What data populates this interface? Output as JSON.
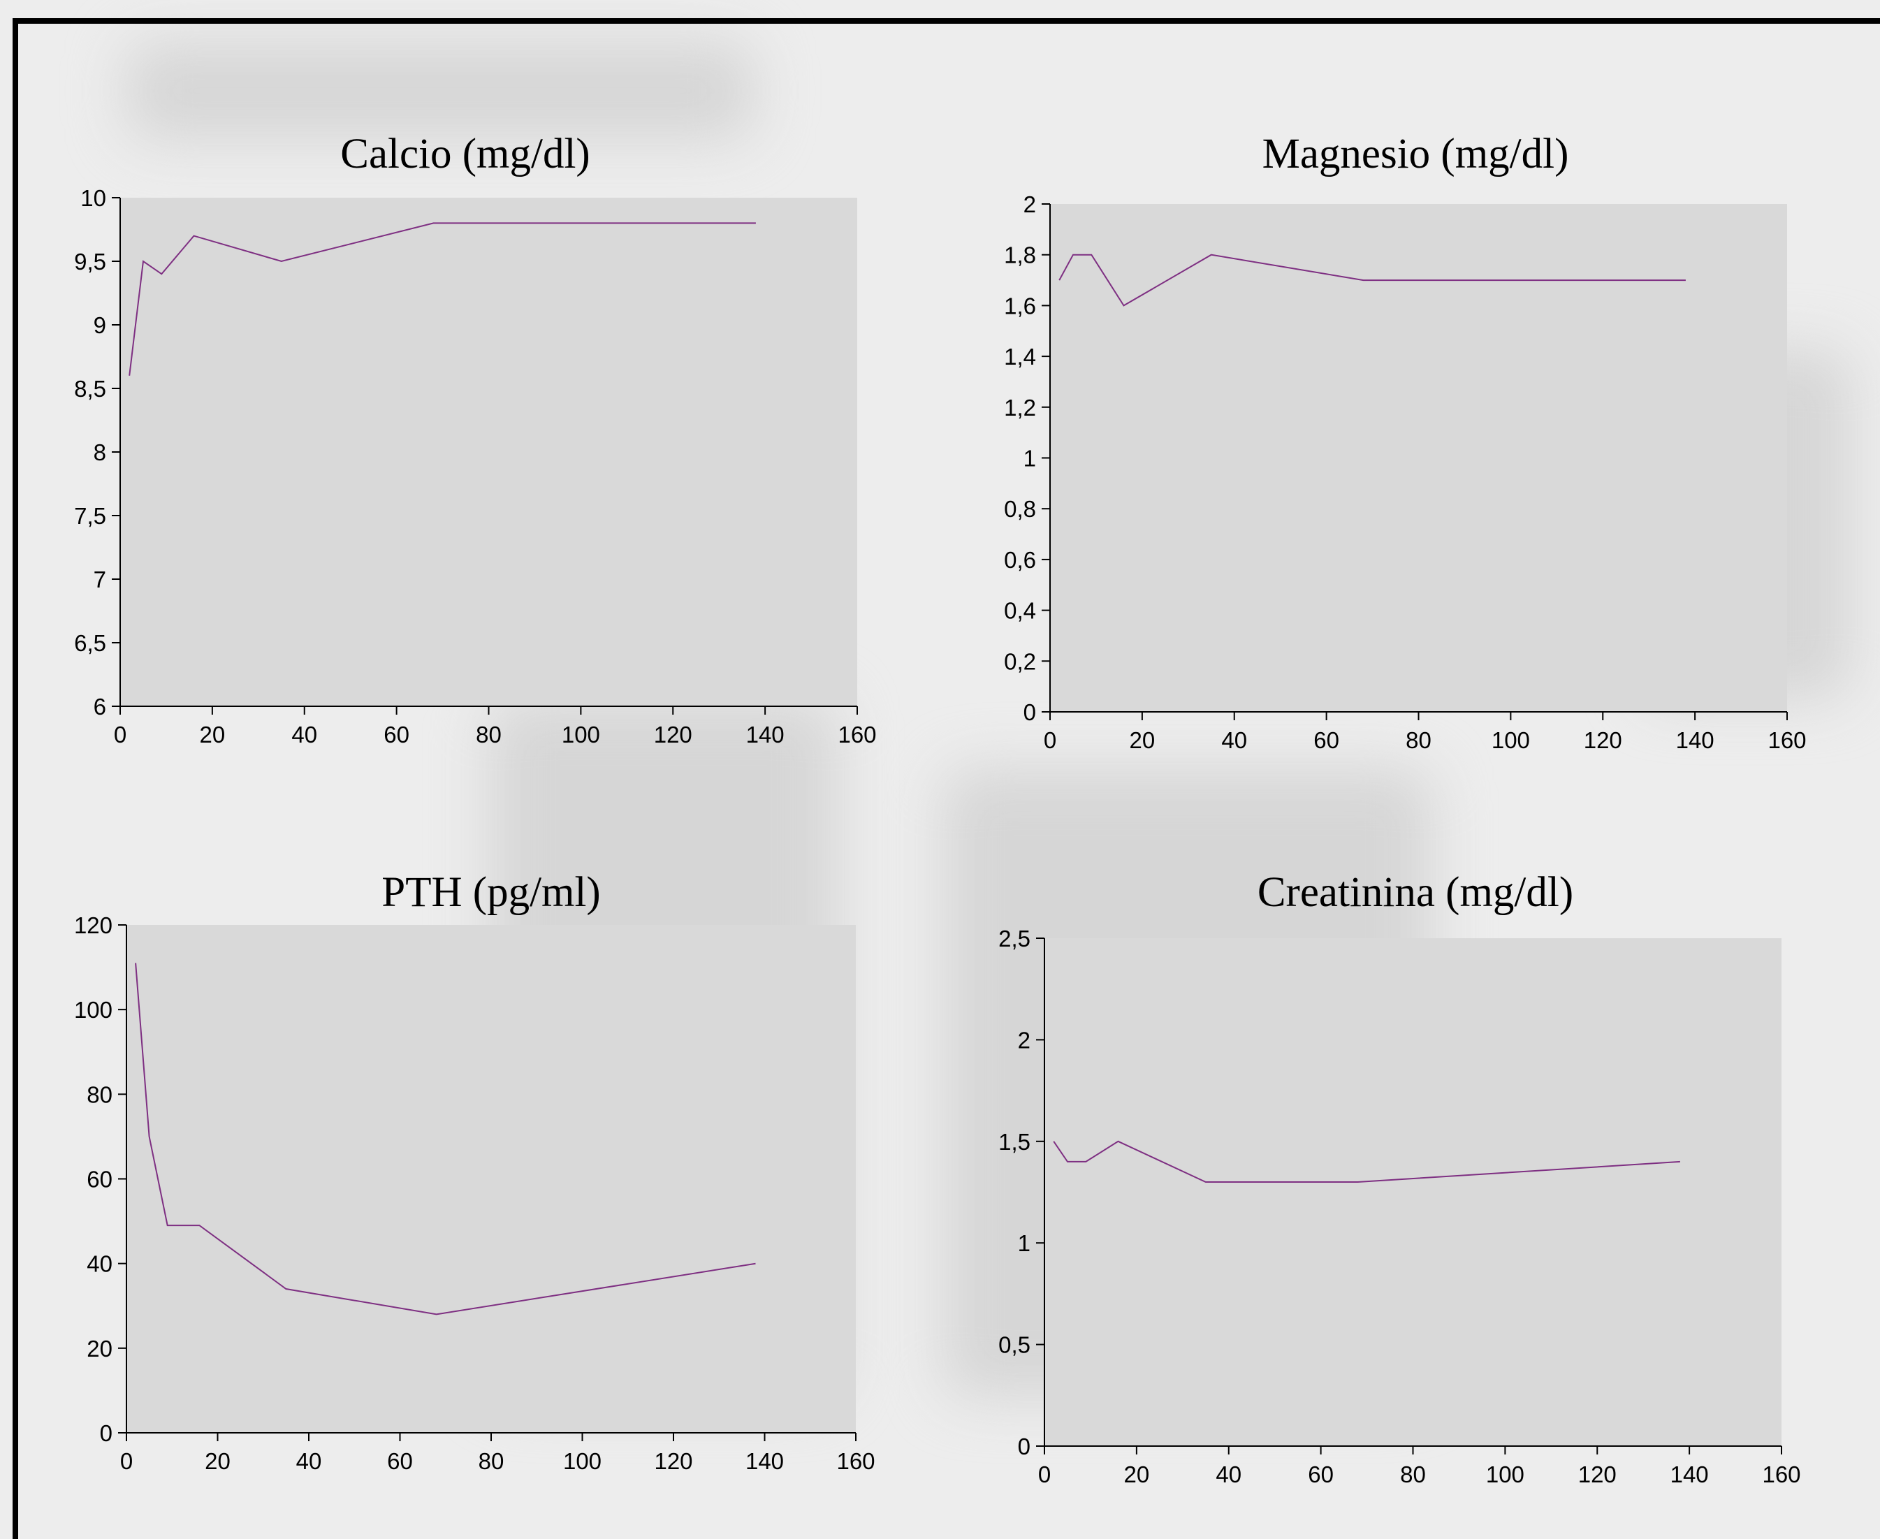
{
  "colors": {
    "line": "#7e2f82",
    "plot_bg": "#d9d9d9",
    "axis": "#000000"
  },
  "chart_data": [
    {
      "type": "line",
      "title": "Calcio (mg/dl)",
      "xlabel": "",
      "ylabel": "",
      "xlim": [
        0,
        160
      ],
      "ylim": [
        6,
        10
      ],
      "xticks": [
        0,
        20,
        40,
        60,
        80,
        100,
        120,
        140,
        160
      ],
      "xtick_labels": [
        "0",
        "20",
        "40",
        "60",
        "80",
        "100",
        "120",
        "140",
        "160"
      ],
      "yticks": [
        6,
        6.5,
        7,
        7.5,
        8,
        8.5,
        9,
        9.5,
        10
      ],
      "ytick_labels": [
        "6",
        "6,5",
        "7",
        "7,5",
        "8",
        "8,5",
        "9",
        "9,5",
        "10"
      ],
      "x": [
        2,
        5,
        9,
        16,
        35,
        68,
        138
      ],
      "y": [
        8.6,
        9.5,
        9.4,
        9.7,
        9.5,
        9.8,
        9.8
      ]
    },
    {
      "type": "line",
      "title": "Magnesio (mg/dl)",
      "xlabel": "",
      "ylabel": "",
      "xlim": [
        0,
        160
      ],
      "ylim": [
        0,
        2
      ],
      "xticks": [
        0,
        20,
        40,
        60,
        80,
        100,
        120,
        140,
        160
      ],
      "xtick_labels": [
        "0",
        "20",
        "40",
        "60",
        "80",
        "100",
        "120",
        "140",
        "160"
      ],
      "yticks": [
        0,
        0.2,
        0.4,
        0.6,
        0.8,
        1,
        1.2,
        1.4,
        1.6,
        1.8,
        2
      ],
      "ytick_labels": [
        "0",
        "0,2",
        "0,4",
        "0,6",
        "0,8",
        "1",
        "1,2",
        "1,4",
        "1,6",
        "1,8",
        "2"
      ],
      "x": [
        2,
        5,
        9,
        16,
        35,
        68,
        138
      ],
      "y": [
        1.7,
        1.8,
        1.8,
        1.6,
        1.8,
        1.7,
        1.7
      ]
    },
    {
      "type": "line",
      "title": "PTH (pg/ml)",
      "xlabel": "",
      "ylabel": "",
      "xlim": [
        0,
        160
      ],
      "ylim": [
        0,
        120
      ],
      "xticks": [
        0,
        20,
        40,
        60,
        80,
        100,
        120,
        140,
        160
      ],
      "xtick_labels": [
        "0",
        "20",
        "40",
        "60",
        "80",
        "100",
        "120",
        "140",
        "160"
      ],
      "yticks": [
        0,
        20,
        40,
        60,
        80,
        100,
        120
      ],
      "ytick_labels": [
        "0",
        "20",
        "40",
        "60",
        "80",
        "100",
        "120"
      ],
      "x": [
        2,
        5,
        9,
        16,
        35,
        68,
        138
      ],
      "y": [
        111,
        70,
        49,
        49,
        34,
        28,
        40
      ]
    },
    {
      "type": "line",
      "title": "Creatinina (mg/dl)",
      "xlabel": "",
      "ylabel": "",
      "xlim": [
        0,
        160
      ],
      "ylim": [
        0,
        2.5
      ],
      "xticks": [
        0,
        20,
        40,
        60,
        80,
        100,
        120,
        140,
        160
      ],
      "xtick_labels": [
        "0",
        "20",
        "40",
        "60",
        "80",
        "100",
        "120",
        "140",
        "160"
      ],
      "yticks": [
        0,
        0.5,
        1,
        1.5,
        2,
        2.5
      ],
      "ytick_labels": [
        "0",
        "0,5",
        "1",
        "1,5",
        "2",
        "2,5"
      ],
      "x": [
        2,
        5,
        9,
        16,
        35,
        68,
        138
      ],
      "y": [
        1.5,
        1.4,
        1.4,
        1.5,
        1.3,
        1.3,
        1.4
      ]
    }
  ]
}
